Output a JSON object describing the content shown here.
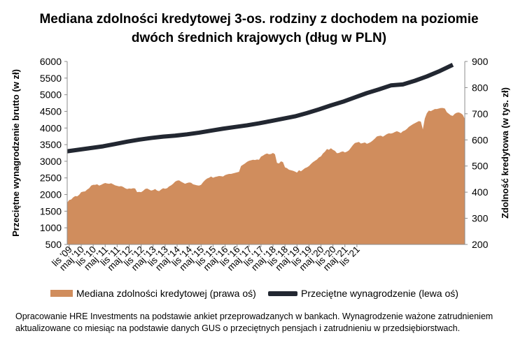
{
  "chart_data": {
    "type": "area",
    "title": "Mediana zdolności kredytowej 3-os. rodziny z dochodem na poziomie dwóch średnich krajowych (dług w PLN)",
    "title_lines": [
      "Mediana zdolności kredytowej 3-os. rodziny z dochodem na poziomie",
      "dwóch średnich krajowych (dług w PLN)"
    ],
    "ylabel_left": "Przeciętne wynagrodzenie brutto (w zł)",
    "ylabel_right": "Zdolność kredytowa (w tys. zł)",
    "ylim_left": [
      500,
      6000
    ],
    "ylim_right": [
      200,
      900
    ],
    "yticks_left": [
      "500",
      "1000",
      "1500",
      "2000",
      "2500",
      "3000",
      "3500",
      "4000",
      "4500",
      "5000",
      "5500",
      "6000"
    ],
    "yticks_right": [
      "200",
      "300",
      "400",
      "500",
      "600",
      "700",
      "800",
      "900"
    ],
    "x_tick_labels": [
      "lis '09",
      "maj '10",
      "lis '10",
      "maj '11",
      "lis '11",
      "maj '12",
      "lis '12",
      "maj '13",
      "lis '13",
      "maj '14",
      "lis '14",
      "maj '15",
      "lis '15",
      "maj '16",
      "lis '16",
      "maj '17",
      "lis '17",
      "maj '18",
      "lis '18",
      "maj '19",
      "lis '19",
      "maj '20",
      "lis '20",
      "maj '21",
      "lis '21"
    ],
    "x_start": "2009-11",
    "x_end": "2021-12",
    "series": [
      {
        "name": "Mediana zdolności kredytowej (prawa oś)",
        "axis": "right",
        "type": "area",
        "color": "#d08d5d",
        "values": [
          360,
          370,
          372,
          380,
          385,
          384,
          390,
          400,
          402,
          403,
          410,
          415,
          425,
          428,
          428,
          430,
          425,
          428,
          432,
          435,
          433,
          432,
          434,
          430,
          426,
          424,
          422,
          423,
          420,
          415,
          412,
          414,
          413,
          415,
          414,
          400,
          401,
          400,
          405,
          412,
          414,
          410,
          406,
          408,
          412,
          406,
          404,
          410,
          415,
          413,
          415,
          422,
          426,
          432,
          440,
          444,
          445,
          440,
          436,
          432,
          435,
          437,
          436,
          430,
          428,
          426,
          425,
          428,
          438,
          446,
          452,
          455,
          460,
          455,
          458,
          460,
          462,
          461,
          460,
          465,
          468,
          470,
          470,
          472,
          474,
          476,
          478,
          500,
          505,
          510,
          516,
          520,
          522,
          524,
          523,
          525,
          524,
          536,
          540,
          545,
          548,
          545,
          546,
          550,
          545,
          512,
          510,
          518,
          515,
          495,
          492,
          486,
          484,
          482,
          479,
          475,
          484,
          480,
          486,
          492,
          495,
          500,
          508,
          515,
          520,
          525,
          533,
          537,
          548,
          555,
          565,
          562,
          568,
          562,
          558,
          549,
          550,
          554,
          556,
          552,
          555,
          560,
          570,
          580,
          588,
          590,
          592,
          586,
          588,
          590,
          585,
          588,
          592,
          598,
          605,
          613,
          615,
          616,
          612,
          617,
          622,
          625,
          624,
          626,
          630,
          633,
          630,
          626,
          633,
          636,
          642,
          650,
          655,
          660,
          664,
          668,
          672,
          670,
          640,
          682,
          702,
          712,
          710,
          714,
          718,
          718,
          720,
          722,
          722,
          720,
          706,
          700,
          694,
          692,
          700,
          704,
          705,
          702,
          696,
          680
        ]
      },
      {
        "name": "Przeciętne wynagrodzenie (lewa oś)",
        "axis": "left",
        "type": "line",
        "color": "#222731",
        "values": [
          {
            "x": 0,
            "y": 3300
          },
          {
            "x": 6,
            "y": 3350
          },
          {
            "x": 12,
            "y": 3400
          },
          {
            "x": 18,
            "y": 3450
          },
          {
            "x": 24,
            "y": 3520
          },
          {
            "x": 30,
            "y": 3590
          },
          {
            "x": 36,
            "y": 3650
          },
          {
            "x": 42,
            "y": 3700
          },
          {
            "x": 48,
            "y": 3740
          },
          {
            "x": 54,
            "y": 3770
          },
          {
            "x": 60,
            "y": 3810
          },
          {
            "x": 66,
            "y": 3860
          },
          {
            "x": 72,
            "y": 3920
          },
          {
            "x": 78,
            "y": 3980
          },
          {
            "x": 84,
            "y": 4030
          },
          {
            "x": 90,
            "y": 4080
          },
          {
            "x": 96,
            "y": 4140
          },
          {
            "x": 102,
            "y": 4210
          },
          {
            "x": 108,
            "y": 4280
          },
          {
            "x": 114,
            "y": 4350
          },
          {
            "x": 120,
            "y": 4450
          },
          {
            "x": 126,
            "y": 4560
          },
          {
            "x": 132,
            "y": 4680
          },
          {
            "x": 138,
            "y": 4790
          },
          {
            "x": 144,
            "y": 4920
          },
          {
            "x": 150,
            "y": 5050
          },
          {
            "x": 156,
            "y": 5160
          },
          {
            "x": 162,
            "y": 5280
          },
          {
            "x": 168,
            "y": 5310
          },
          {
            "x": 174,
            "y": 5420
          },
          {
            "x": 180,
            "y": 5550
          },
          {
            "x": 186,
            "y": 5700
          },
          {
            "x": 193,
            "y": 5900
          }
        ]
      }
    ],
    "legend_position": "bottom",
    "grid": false
  },
  "legend": {
    "item1": "Mediana zdolności kredytowej (prawa oś)",
    "item2": "Przeciętne wynagrodzenie (lewa oś)"
  },
  "source_note": "Opracowanie HRE Investments na podstawie ankiet przeprowadzanych w bankach. Wynagrodzenie ważone zatrudnieniem aktualizowane co miesiąc na podstawie danych GUS o przeciętnych pensjach i zatrudnieniu w przedsiębiorstwach."
}
